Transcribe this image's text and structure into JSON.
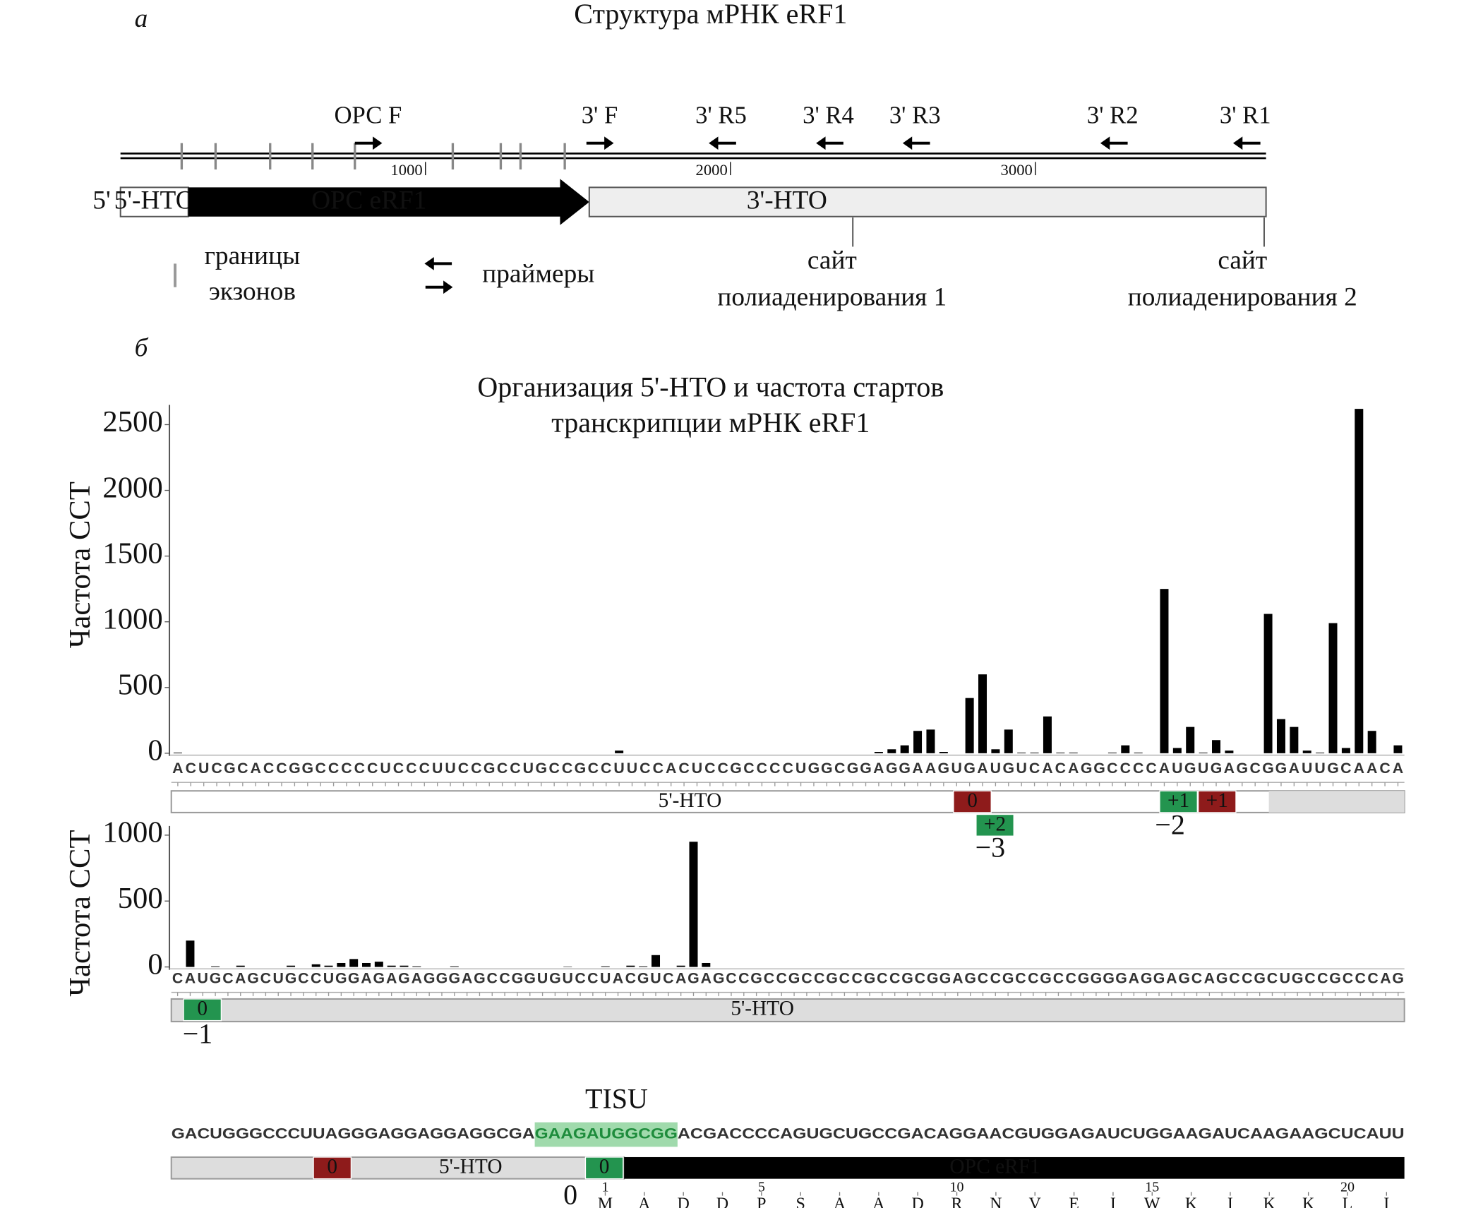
{
  "panel_a": {
    "panel_label": "а",
    "title": "Структура мРНК eRF1",
    "primers": [
      "ОРС F",
      "3' F",
      "3' R5",
      "3' R4",
      "3' R3",
      "3' R2",
      "3' R1"
    ],
    "scale_ticks": [
      1000,
      2000,
      3000
    ],
    "five_prime": "5'",
    "segments": [
      "5'-НТО",
      "ОРС eRF1",
      "3'-НТО"
    ],
    "legend": {
      "exon_boundaries": [
        "границы",
        "экзонов"
      ],
      "primers": "праймеры"
    },
    "polya_sites": [
      [
        "сайт",
        "полиаденирования 1"
      ],
      [
        "сайт",
        "полиаденирования 2"
      ]
    ]
  },
  "panel_b": {
    "panel_label": "б",
    "title": [
      "Организация 5'-НТО и частота стартов",
      "транскрипции мРНК eRF1"
    ]
  },
  "chart_data": [
    {
      "type": "bar",
      "y_label": "Частота ССТ",
      "color": "#000000",
      "categories": [
        "A",
        "C",
        "U",
        "C",
        "G",
        "C",
        "A",
        "C",
        "C",
        "G",
        "G",
        "C",
        "C",
        "C",
        "C",
        "C",
        "U",
        "C",
        "C",
        "C",
        "U",
        "U",
        "C",
        "C",
        "G",
        "C",
        "C",
        "U",
        "G",
        "C",
        "C",
        "G",
        "C",
        "C",
        "U",
        "U",
        "C",
        "C",
        "A",
        "C",
        "U",
        "C",
        "C",
        "G",
        "C",
        "C",
        "C",
        "C",
        "U",
        "G",
        "G",
        "C",
        "G",
        "G",
        "A",
        "G",
        "G",
        "A",
        "A",
        "G",
        "U",
        "G",
        "A",
        "U",
        "G",
        "U",
        "C",
        "A",
        "C",
        "A",
        "G",
        "G",
        "C",
        "C",
        "C",
        "C",
        "A",
        "U",
        "G",
        "U",
        "G",
        "A",
        "G",
        "C",
        "G",
        "G",
        "A",
        "U",
        "U",
        "G",
        "C",
        "A",
        "A",
        "C",
        "A"
      ],
      "values": [
        5,
        0,
        0,
        0,
        0,
        0,
        0,
        0,
        0,
        0,
        0,
        0,
        0,
        0,
        0,
        0,
        0,
        0,
        0,
        0,
        0,
        0,
        0,
        0,
        0,
        0,
        0,
        0,
        0,
        0,
        0,
        0,
        0,
        0,
        20,
        0,
        0,
        0,
        0,
        0,
        0,
        0,
        0,
        0,
        0,
        0,
        0,
        0,
        0,
        0,
        0,
        0,
        0,
        0,
        10,
        30,
        60,
        170,
        180,
        10,
        0,
        420,
        600,
        30,
        180,
        5,
        5,
        280,
        5,
        5,
        0,
        0,
        5,
        60,
        5,
        0,
        1250,
        40,
        200,
        5,
        100,
        20,
        0,
        0,
        1060,
        260,
        200,
        20,
        5,
        990,
        40,
        2620,
        170,
        0,
        60
      ],
      "ylim": [
        0,
        2650
      ],
      "yticks": [
        0,
        500,
        1000,
        1500,
        2000,
        2500
      ]
    },
    {
      "type": "bar",
      "y_label": "Частота ССТ",
      "color": "#000000",
      "categories": [
        "C",
        "A",
        "U",
        "G",
        "C",
        "A",
        "G",
        "C",
        "U",
        "G",
        "C",
        "C",
        "U",
        "G",
        "G",
        "A",
        "G",
        "A",
        "G",
        "A",
        "G",
        "G",
        "G",
        "A",
        "G",
        "C",
        "C",
        "G",
        "G",
        "U",
        "G",
        "U",
        "C",
        "C",
        "U",
        "A",
        "C",
        "G",
        "U",
        "C",
        "A",
        "G",
        "A",
        "G",
        "C",
        "C",
        "G",
        "C",
        "C",
        "G",
        "C",
        "C",
        "G",
        "C",
        "C",
        "G",
        "C",
        "C",
        "G",
        "C",
        "G",
        "G",
        "A",
        "G",
        "C",
        "C",
        "G",
        "C",
        "C",
        "G",
        "C",
        "C",
        "G",
        "G",
        "G",
        "G",
        "A",
        "G",
        "G",
        "A",
        "G",
        "C",
        "A",
        "G",
        "C",
        "C",
        "G",
        "C",
        "U",
        "G",
        "C",
        "C",
        "G",
        "C",
        "C",
        "C",
        "A",
        "G"
      ],
      "values": [
        0,
        200,
        0,
        5,
        0,
        10,
        0,
        0,
        0,
        10,
        0,
        20,
        10,
        30,
        60,
        30,
        40,
        10,
        10,
        5,
        0,
        0,
        5,
        0,
        0,
        0,
        0,
        0,
        0,
        0,
        0,
        3,
        0,
        0,
        5,
        0,
        10,
        5,
        90,
        0,
        10,
        950,
        30,
        0,
        0,
        0,
        0,
        0,
        0,
        0,
        0,
        0,
        0,
        0,
        0,
        0,
        0,
        0,
        0,
        0,
        0,
        0,
        0,
        0,
        0,
        0,
        0,
        0,
        0,
        0,
        0,
        0,
        0,
        0,
        0,
        0,
        0,
        0,
        0,
        0,
        0,
        0,
        0,
        0,
        0,
        0,
        0,
        0,
        0,
        0,
        0,
        0,
        0,
        0,
        0,
        0,
        0,
        0
      ],
      "ylim": [
        0,
        1070
      ],
      "yticks": [
        0,
        500,
        1000
      ]
    }
  ],
  "tracks": [
    {
      "label": "5'-НТО",
      "frames": [
        {
          "label": "0",
          "color": "#8e1b1b"
        },
        {
          "label": "+2",
          "color": "#23944f"
        },
        {
          "label": "+1",
          "color": "#23944f"
        },
        {
          "label": "+1",
          "color": "#8e1b1b"
        }
      ],
      "shifts": [
        "−3",
        "−2"
      ]
    },
    {
      "label": "5'-НТО",
      "frames": [
        {
          "label": "0",
          "color": "#23944f"
        }
      ],
      "shifts": [
        "−1"
      ]
    }
  ],
  "tisu_panel": {
    "label": "TISU",
    "sequence": [
      "GACUGGGCCCUUAGGGAGGAGGAGGCGA",
      "GAAGAUGGCGG",
      "ACGACCCCAGUGCUGCCGACAGGAACGUGGAGAUCUGGAAGAUCAAGAAGCUCAUU"
    ],
    "highlight_color": "#8fd49d",
    "track_labels": [
      "5'-НТО",
      "ОРС eRF1"
    ],
    "frames": [
      {
        "label": "0",
        "color": "#8e1b1b"
      },
      {
        "label": "0",
        "color": "#23944f"
      }
    ],
    "start": 0,
    "amino_acids": [
      "M",
      "A",
      "D",
      "D",
      "P",
      "S",
      "A",
      "A",
      "D",
      "R",
      "N",
      "V",
      "E",
      "I",
      "W",
      "K",
      "I",
      "K",
      "K",
      "L",
      "I"
    ],
    "aa_numbers": [
      1,
      5,
      10,
      15,
      20
    ]
  }
}
